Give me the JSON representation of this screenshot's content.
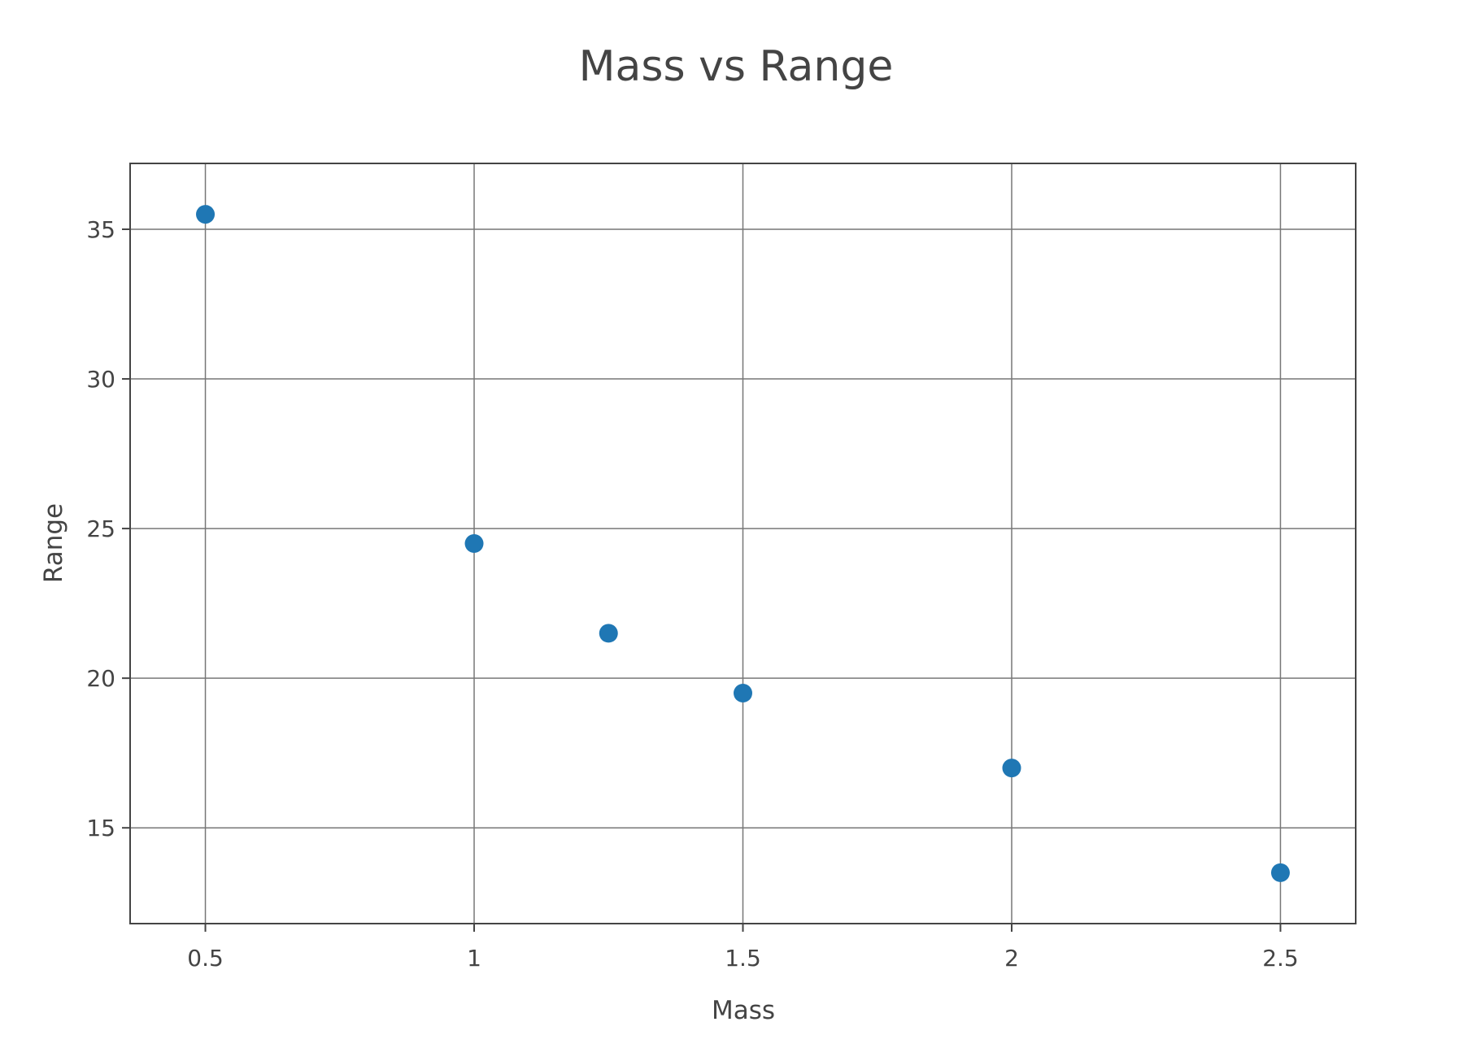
{
  "chart_data": {
    "type": "scatter",
    "title": "Mass vs Range",
    "xlabel": "Mass",
    "ylabel": "Range",
    "xlim": [
      0.36,
      2.64
    ],
    "ylim": [
      11.8,
      37.2
    ],
    "x_ticks": [
      {
        "value": 0.5,
        "label": "0.5"
      },
      {
        "value": 1,
        "label": "1"
      },
      {
        "value": 1.5,
        "label": "1.5"
      },
      {
        "value": 2,
        "label": "2"
      },
      {
        "value": 2.5,
        "label": "2.5"
      }
    ],
    "y_ticks": [
      {
        "value": 15,
        "label": "15"
      },
      {
        "value": 20,
        "label": "20"
      },
      {
        "value": 25,
        "label": "25"
      },
      {
        "value": 30,
        "label": "30"
      },
      {
        "value": 35,
        "label": "35"
      }
    ],
    "grid": true,
    "legend": "none",
    "series": [
      {
        "color": "#1f77b4",
        "points": [
          {
            "x": 0.5,
            "y": 35.5
          },
          {
            "x": 1,
            "y": 24.5
          },
          {
            "x": 1.25,
            "y": 21.5
          },
          {
            "x": 1.5,
            "y": 19.5
          },
          {
            "x": 2,
            "y": 17
          },
          {
            "x": 2.5,
            "y": 13.5
          }
        ]
      }
    ]
  },
  "colors": {
    "grid": "#777777",
    "axis": "#444444",
    "text": "#444444",
    "marker": "#1f77b4"
  }
}
